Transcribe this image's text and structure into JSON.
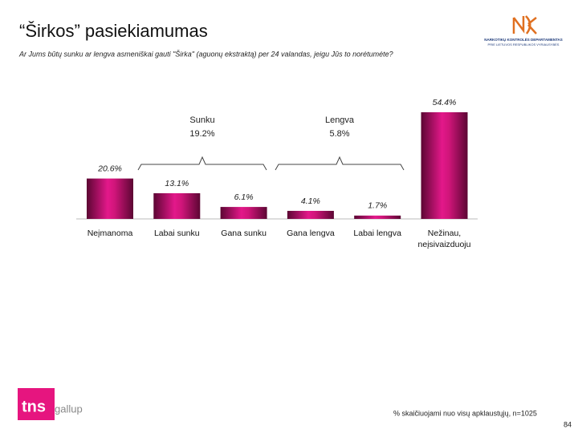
{
  "title": "“Širkos” pasiekiamumas",
  "subtitle": "Ar Jums būtų sunku ar lengva asmeniškai gauti \"Širka\" (aguonų ekstraktą) per 24 valandas, jeigu Jūs to norėtumėte?",
  "logo_top": {
    "line1": "NARKOTIKŲ KONTROLĖS DEPARTAMENTAS",
    "line2": "PRIE LIETUVOS RESPUBLIKOS VYRIAUSYBĖS"
  },
  "logo_bottom": {
    "brand": "tns",
    "name": "gallup"
  },
  "footnote": "% skaičiuojami nuo visų apklaustųjų, n=1025",
  "page_number": "84",
  "chart_data": {
    "type": "bar",
    "categories": [
      "Neįmanoma",
      "Labai sunku",
      "Gana sunku",
      "Gana lengva",
      "Labai lengva",
      "Nežinau, neįsivaizduoju"
    ],
    "values": [
      20.6,
      13.1,
      6.1,
      4.1,
      1.7,
      54.4
    ],
    "value_labels": [
      "20.6%",
      "13.1%",
      "6.1%",
      "4.1%",
      "1.7%",
      "54.4%"
    ],
    "color": "#d4157a",
    "groups": [
      {
        "name": "Sunku",
        "label": "19.2%"
      },
      {
        "name": "Lengva",
        "label": "5.8%"
      }
    ]
  }
}
